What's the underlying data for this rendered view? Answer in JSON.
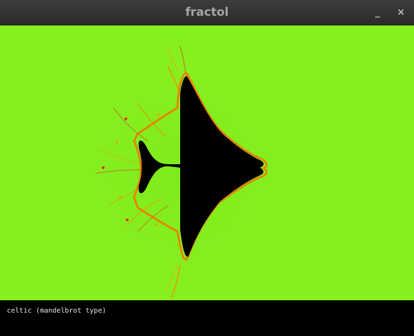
{
  "window": {
    "title": "fractol",
    "minimize_glyph": "_",
    "close_glyph": "×"
  },
  "canvas": {
    "background_color": "#86ef1e",
    "set_color": "#000000",
    "edge_colors": [
      "#ff7a00",
      "#e0301e",
      "#ffb000"
    ]
  },
  "status": {
    "label": "celtic (mandelbrot type)"
  }
}
